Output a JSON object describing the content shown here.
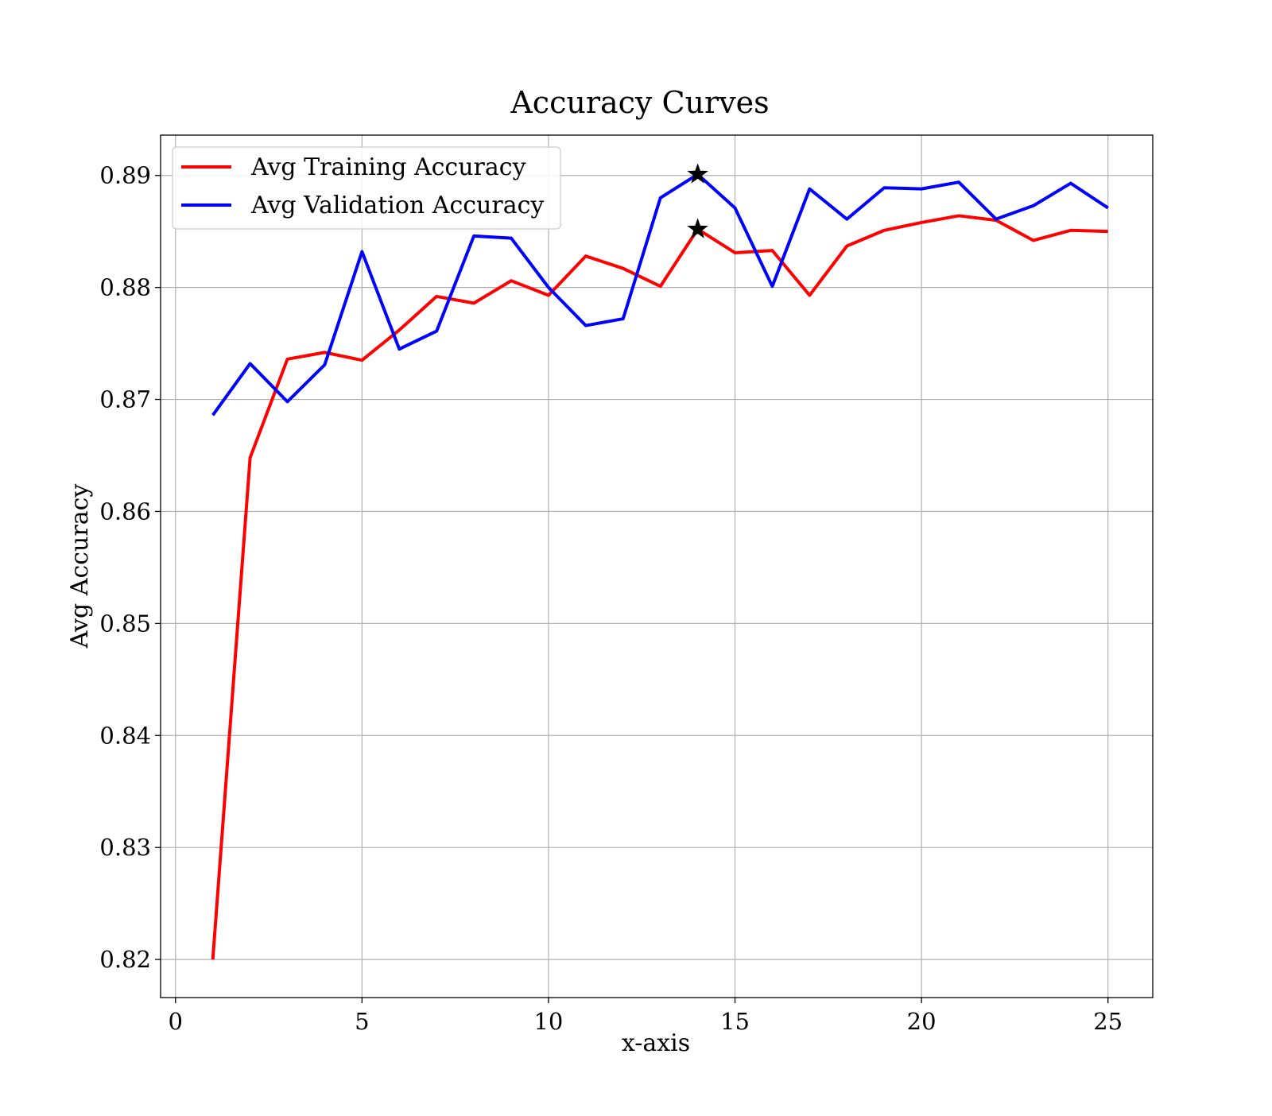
{
  "chart_data": {
    "type": "line",
    "title": "Accuracy Curves",
    "xlabel": "x-axis",
    "ylabel": "Avg Accuracy",
    "xlim": [
      -0.4,
      26.2
    ],
    "ylim": [
      0.8166,
      0.8936
    ],
    "xticks": [
      0,
      5,
      10,
      15,
      20,
      25
    ],
    "xtick_labels": [
      "0",
      "5",
      "10",
      "15",
      "20",
      "25"
    ],
    "yticks": [
      0.82,
      0.83,
      0.84,
      0.85,
      0.86,
      0.87,
      0.88,
      0.89
    ],
    "ytick_labels": [
      "0.82",
      "0.83",
      "0.84",
      "0.85",
      "0.86",
      "0.87",
      "0.88",
      "0.89"
    ],
    "grid": true,
    "legend_position": "top-left",
    "x": [
      1,
      2,
      3,
      4,
      5,
      6,
      7,
      8,
      9,
      10,
      11,
      12,
      13,
      14,
      15,
      16,
      17,
      18,
      19,
      20,
      21,
      22,
      23,
      24,
      25
    ],
    "series": [
      {
        "name": "Avg Training Accuracy",
        "color": "#ff0000",
        "values": [
          0.82,
          0.8648,
          0.8736,
          0.8742,
          0.8735,
          0.8762,
          0.8792,
          0.8786,
          0.8806,
          0.8793,
          0.8828,
          0.8817,
          0.8801,
          0.8852,
          0.8831,
          0.8833,
          0.8793,
          0.8837,
          0.8851,
          0.8858,
          0.8864,
          0.886,
          0.8842,
          0.8851,
          0.885
        ]
      },
      {
        "name": "Avg Validation Accuracy",
        "color": "#0000ff",
        "values": [
          0.8686,
          0.8732,
          0.8698,
          0.8731,
          0.8832,
          0.8745,
          0.8761,
          0.8846,
          0.8844,
          0.88,
          0.8766,
          0.8772,
          0.888,
          0.8901,
          0.8871,
          0.8801,
          0.8888,
          0.8861,
          0.8889,
          0.8888,
          0.8894,
          0.8861,
          0.8873,
          0.8893,
          0.8871
        ]
      }
    ],
    "markers": [
      {
        "series": "Avg Validation Accuracy",
        "x": 14,
        "y": 0.8901,
        "symbol": "star",
        "color": "#000000"
      },
      {
        "series": "Avg Training Accuracy",
        "x": 14,
        "y": 0.8852,
        "symbol": "star",
        "color": "#000000"
      }
    ]
  }
}
